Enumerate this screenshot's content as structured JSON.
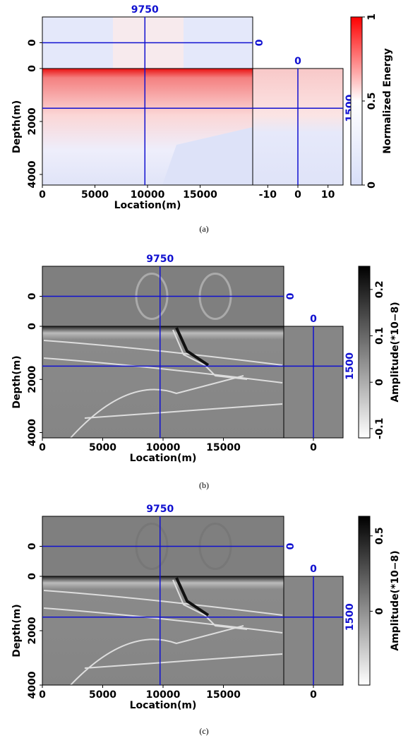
{
  "panels": [
    {
      "caption": "(a)",
      "location_label": "Location(m)",
      "depth_label": "Depth(m)",
      "location_lim": [
        0,
        20000
      ],
      "location_ticks": [
        0,
        5000,
        10000,
        15000
      ],
      "depth_lim": [
        0,
        4400
      ],
      "depth_ticks": [
        0,
        2000,
        4000
      ],
      "offset_lim": [
        -15,
        15
      ],
      "offset_ticks": [
        -10,
        0,
        10
      ],
      "slice_ticks": [
        0
      ],
      "crosshair_location": 9750,
      "crosshair_depth": 1500,
      "crosshair_offset": 0,
      "colorbar": {
        "label": "Normalized Energy",
        "lim": [
          0,
          1
        ],
        "ticks": [
          0,
          0.5,
          1
        ],
        "colors": [
          "#d8def8",
          "#ffffff",
          "#ff0000"
        ]
      }
    },
    {
      "caption": "(b)",
      "location_label": "Location(m)",
      "depth_label": "Depth(m)",
      "location_lim": [
        0,
        20000
      ],
      "location_ticks": [
        0,
        5000,
        10000,
        15000
      ],
      "depth_lim": [
        0,
        4200
      ],
      "depth_ticks": [
        0,
        2000,
        4000
      ],
      "offset_lim": [
        -15,
        15
      ],
      "offset_ticks": [
        0
      ],
      "slice_ticks": [
        0
      ],
      "crosshair_location": 9750,
      "crosshair_depth": 1500,
      "crosshair_offset": 0,
      "colorbar": {
        "label": "Amplitude(*10−8)",
        "lim": [
          -0.12,
          0.25
        ],
        "ticks": [
          -0.1,
          0,
          0.1,
          0.2
        ],
        "colors": [
          "#ffffff",
          "#808080",
          "#000000"
        ]
      }
    },
    {
      "caption": "(c)",
      "location_label": "Location(m)",
      "depth_label": "Depth(m)",
      "location_lim": [
        0,
        20000
      ],
      "location_ticks": [
        0,
        5000,
        10000,
        15000
      ],
      "depth_lim": [
        0,
        4000
      ],
      "depth_ticks": [
        0,
        2000,
        4000
      ],
      "offset_lim": [
        -15,
        15
      ],
      "offset_ticks": [
        0
      ],
      "slice_ticks": [
        0
      ],
      "crosshair_location": 9750,
      "crosshair_depth": 1500,
      "crosshair_offset": 0,
      "colorbar": {
        "label": "Amplitude(*10−8)",
        "lim": [
          -0.49,
          0.63
        ],
        "ticks": [
          0,
          0.5
        ],
        "colors": [
          "#ffffff",
          "#808080",
          "#000000"
        ]
      }
    }
  ]
}
